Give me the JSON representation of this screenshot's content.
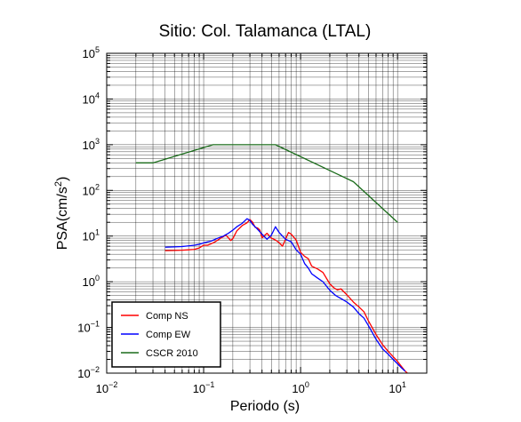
{
  "chart_data": {
    "type": "line",
    "title": "Sitio: Col. Talamanca (LTAL)",
    "xlabel": "Periodo (s)",
    "ylabel_base": "PSA(cm/s",
    "ylabel_sup": "2",
    "ylabel_close": ")",
    "x_scale": "log",
    "y_scale": "log",
    "xlim": [
      0.01,
      20
    ],
    "ylim": [
      0.01,
      100000
    ],
    "grid": true,
    "legend_position": "bottom-left",
    "x_ticks": [
      {
        "value": 0.01,
        "base": "10",
        "exp": "−2"
      },
      {
        "value": 0.1,
        "base": "10",
        "exp": "−1"
      },
      {
        "value": 1,
        "base": "10",
        "exp": "0"
      },
      {
        "value": 10,
        "base": "10",
        "exp": "1"
      }
    ],
    "y_ticks": [
      {
        "value": 0.01,
        "base": "10",
        "exp": "−2"
      },
      {
        "value": 0.1,
        "base": "10",
        "exp": "−1"
      },
      {
        "value": 1,
        "base": "10",
        "exp": "0"
      },
      {
        "value": 10,
        "base": "10",
        "exp": "1"
      },
      {
        "value": 100,
        "base": "10",
        "exp": "2"
      },
      {
        "value": 1000,
        "base": "10",
        "exp": "3"
      },
      {
        "value": 10000,
        "base": "10",
        "exp": "4"
      },
      {
        "value": 100000,
        "base": "10",
        "exp": "5"
      }
    ],
    "series": [
      {
        "name": "Comp NS",
        "color": "#ff0000",
        "points": [
          [
            0.04,
            4.8
          ],
          [
            0.05,
            4.85
          ],
          [
            0.06,
            4.9
          ],
          [
            0.07,
            5.0
          ],
          [
            0.08,
            5.1
          ],
          [
            0.09,
            5.5
          ],
          [
            0.1,
            6.3
          ],
          [
            0.11,
            6.3
          ],
          [
            0.12,
            6.8
          ],
          [
            0.13,
            7.4
          ],
          [
            0.15,
            9.0
          ],
          [
            0.17,
            10.5
          ],
          [
            0.19,
            8.0
          ],
          [
            0.2,
            8.8
          ],
          [
            0.22,
            13.0
          ],
          [
            0.25,
            17.0
          ],
          [
            0.28,
            19.5
          ],
          [
            0.3,
            23.0
          ],
          [
            0.32,
            20.0
          ],
          [
            0.34,
            15.5
          ],
          [
            0.36,
            15.0
          ],
          [
            0.38,
            13.5
          ],
          [
            0.4,
            9.2
          ],
          [
            0.45,
            11.5
          ],
          [
            0.5,
            9.0
          ],
          [
            0.55,
            8.2
          ],
          [
            0.6,
            7.2
          ],
          [
            0.65,
            6.0
          ],
          [
            0.7,
            8.6
          ],
          [
            0.75,
            12.0
          ],
          [
            0.8,
            11.0
          ],
          [
            0.9,
            8.2
          ],
          [
            1.0,
            4.4
          ],
          [
            1.1,
            3.6
          ],
          [
            1.2,
            3.2
          ],
          [
            1.3,
            2.2
          ],
          [
            1.5,
            1.9
          ],
          [
            1.7,
            1.6
          ],
          [
            2.0,
            0.9
          ],
          [
            2.2,
            0.74
          ],
          [
            2.4,
            0.66
          ],
          [
            2.6,
            0.7
          ],
          [
            3.0,
            0.52
          ],
          [
            3.5,
            0.36
          ],
          [
            4.0,
            0.28
          ],
          [
            4.5,
            0.22
          ],
          [
            5.0,
            0.14
          ],
          [
            6.0,
            0.07
          ],
          [
            7.0,
            0.042
          ],
          [
            8.0,
            0.03
          ],
          [
            9.0,
            0.023
          ],
          [
            10.0,
            0.018
          ],
          [
            12.0,
            0.011
          ],
          [
            13.0,
            0.0095
          ]
        ]
      },
      {
        "name": "Comp EW",
        "color": "#0000ff",
        "points": [
          [
            0.04,
            5.7
          ],
          [
            0.05,
            5.8
          ],
          [
            0.06,
            5.9
          ],
          [
            0.07,
            6.1
          ],
          [
            0.08,
            6.3
          ],
          [
            0.09,
            6.6
          ],
          [
            0.1,
            7.1
          ],
          [
            0.12,
            7.8
          ],
          [
            0.14,
            9.0
          ],
          [
            0.16,
            10.0
          ],
          [
            0.18,
            11.5
          ],
          [
            0.2,
            13.5
          ],
          [
            0.22,
            16.0
          ],
          [
            0.25,
            19.0
          ],
          [
            0.28,
            24.0
          ],
          [
            0.3,
            22.0
          ],
          [
            0.32,
            18.0
          ],
          [
            0.35,
            15.0
          ],
          [
            0.4,
            11.0
          ],
          [
            0.45,
            8.5
          ],
          [
            0.5,
            10.5
          ],
          [
            0.55,
            16.0
          ],
          [
            0.6,
            12.0
          ],
          [
            0.65,
            10.0
          ],
          [
            0.7,
            8.5
          ],
          [
            0.8,
            7.5
          ],
          [
            0.9,
            5.0
          ],
          [
            1.0,
            4.0
          ],
          [
            1.1,
            2.5
          ],
          [
            1.2,
            2.0
          ],
          [
            1.3,
            1.5
          ],
          [
            1.5,
            1.2
          ],
          [
            1.7,
            1.0
          ],
          [
            2.0,
            0.65
          ],
          [
            2.3,
            0.5
          ],
          [
            2.6,
            0.43
          ],
          [
            3.0,
            0.36
          ],
          [
            3.5,
            0.28
          ],
          [
            4.0,
            0.2
          ],
          [
            4.5,
            0.16
          ],
          [
            5.0,
            0.11
          ],
          [
            6.0,
            0.055
          ],
          [
            7.0,
            0.034
          ],
          [
            8.0,
            0.026
          ],
          [
            9.0,
            0.02
          ],
          [
            10.0,
            0.016
          ],
          [
            11.0,
            0.013
          ],
          [
            12.0,
            0.011
          ]
        ]
      },
      {
        "name": "CSCR 2010",
        "color": "#1a6b1a",
        "points": [
          [
            0.02,
            400
          ],
          [
            0.03,
            400
          ],
          [
            0.125,
            1000
          ],
          [
            0.55,
            1000
          ],
          [
            3.5,
            155
          ],
          [
            10.0,
            20
          ]
        ]
      }
    ]
  }
}
